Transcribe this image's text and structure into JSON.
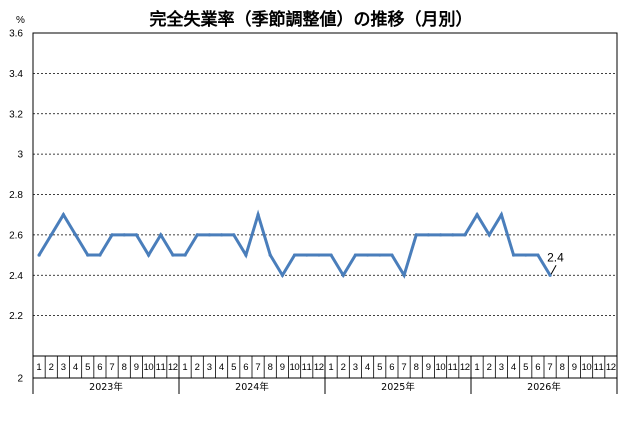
{
  "chart_data": {
    "type": "line",
    "title": "完全失業率（季節調整値）の推移（月別）",
    "ylabel": "%",
    "ylim": [
      2,
      3.6
    ],
    "yticks": [
      "2",
      "2.2",
      "2.4",
      "2.6",
      "2.8",
      "3",
      "3.2",
      "3.4",
      "3.6"
    ],
    "grid": true,
    "months": [
      "1",
      "2",
      "3",
      "4",
      "5",
      "6",
      "7",
      "8",
      "9",
      "10",
      "11",
      "12"
    ],
    "years": [
      "2023年",
      "2024年",
      "2025年",
      "2026年"
    ],
    "values": [
      2.5,
      2.6,
      2.7,
      2.6,
      2.5,
      2.5,
      2.6,
      2.6,
      2.6,
      2.5,
      2.6,
      2.5,
      2.5,
      2.6,
      2.6,
      2.6,
      2.6,
      2.5,
      2.7,
      2.5,
      2.4,
      2.5,
      2.5,
      2.5,
      2.5,
      2.4,
      2.5,
      2.5,
      2.5,
      2.5,
      2.4,
      2.6,
      2.6,
      2.6,
      2.6,
      2.6,
      2.7,
      2.6,
      2.7,
      2.5,
      2.5,
      2.5,
      2.4
    ],
    "last_label": "2.4",
    "line_color": "#4a7ebb"
  }
}
